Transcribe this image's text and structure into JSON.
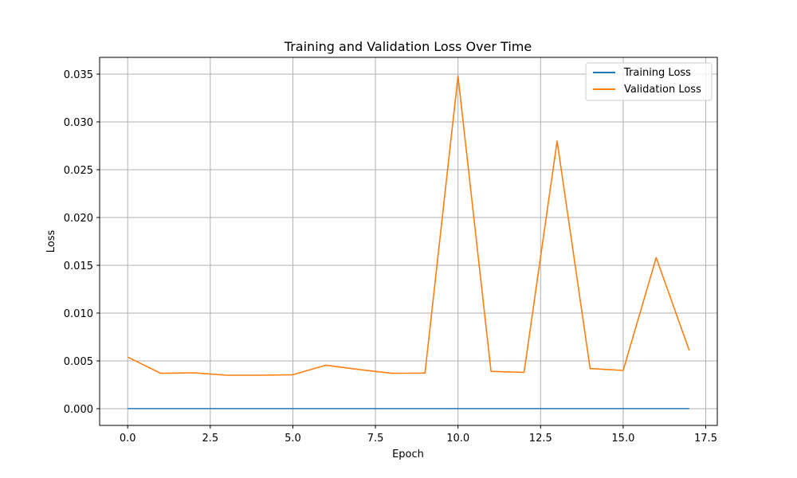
{
  "chart_data": {
    "type": "line",
    "title": "Training and Validation Loss Over Time",
    "xlabel": "Epoch",
    "ylabel": "Loss",
    "xlim": [
      -0.85,
      17.85
    ],
    "ylim": [
      -0.00175,
      0.03675
    ],
    "xticks": [
      0.0,
      2.5,
      5.0,
      7.5,
      10.0,
      12.5,
      15.0,
      17.5
    ],
    "xtick_labels": [
      "0.0",
      "2.5",
      "5.0",
      "7.5",
      "10.0",
      "12.5",
      "15.0",
      "17.5"
    ],
    "yticks": [
      0.0,
      0.005,
      0.01,
      0.015,
      0.02,
      0.025,
      0.03,
      0.035
    ],
    "ytick_labels": [
      "0.000",
      "0.005",
      "0.010",
      "0.015",
      "0.020",
      "0.025",
      "0.030",
      "0.035"
    ],
    "grid": true,
    "legend_position": "top-right",
    "x": [
      0,
      1,
      2,
      3,
      4,
      5,
      6,
      7,
      8,
      9,
      10,
      11,
      12,
      13,
      14,
      15,
      16,
      17
    ],
    "series": [
      {
        "name": "Training Loss",
        "color": "#1f77b4",
        "values": [
          1e-05,
          1e-05,
          1e-05,
          1e-05,
          1e-05,
          1e-05,
          1e-05,
          1e-05,
          1e-05,
          1e-05,
          1e-05,
          1e-05,
          1e-05,
          1e-05,
          1e-05,
          1e-05,
          1e-05,
          1e-05
        ]
      },
      {
        "name": "Validation Loss",
        "color": "#ff7f0e",
        "values": [
          0.0054,
          0.0037,
          0.00375,
          0.0035,
          0.0035,
          0.00355,
          0.00455,
          0.0041,
          0.0037,
          0.00372,
          0.0348,
          0.0039,
          0.0038,
          0.028,
          0.0042,
          0.004,
          0.0158,
          0.0061
        ]
      }
    ]
  }
}
